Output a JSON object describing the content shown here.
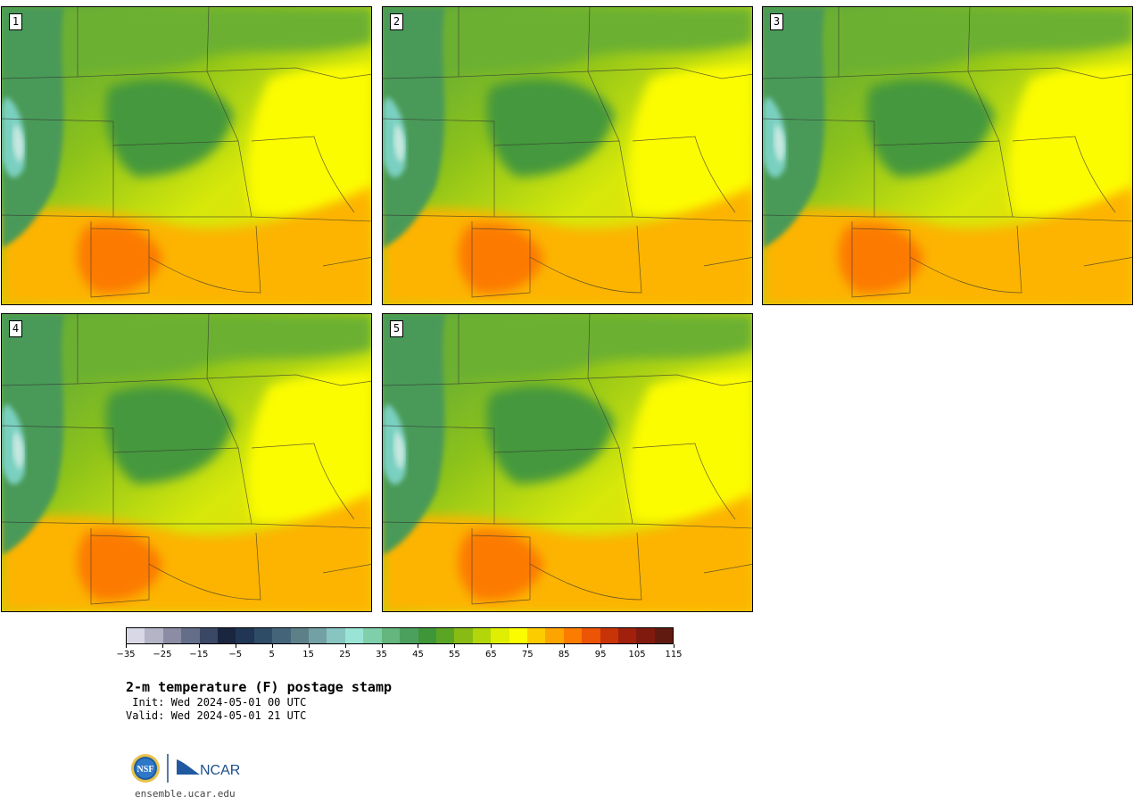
{
  "panels": [
    {
      "label": "1"
    },
    {
      "label": "2"
    },
    {
      "label": "3"
    },
    {
      "label": "4"
    },
    {
      "label": "5"
    }
  ],
  "colorbar": {
    "colors": [
      "#d8d8e6",
      "#b4b4c6",
      "#8c8ca4",
      "#646e88",
      "#3a4866",
      "#1a2540",
      "#203654",
      "#2e4c66",
      "#44647a",
      "#5c8088",
      "#72a0a4",
      "#88c4c0",
      "#9ae4d6",
      "#7fd0aa",
      "#64b67e",
      "#4ca05e",
      "#3e9638",
      "#5aa624",
      "#88bc14",
      "#b2d60a",
      "#e0ee04",
      "#fcfc00",
      "#fccc00",
      "#fca400",
      "#fc7c00",
      "#ec5406",
      "#c83408",
      "#a0200c",
      "#801a0e",
      "#601a10"
    ],
    "ticks": [
      "−35",
      "−25",
      "−15",
      "−5",
      "5",
      "15",
      "25",
      "35",
      "45",
      "55",
      "65",
      "75",
      "85",
      "95",
      "105",
      "115"
    ]
  },
  "title": "2-m temperature (F) postage stamp",
  "init": " Init: Wed 2024-05-01 00 UTC",
  "valid": "Valid: Wed 2024-05-01 21 UTC",
  "logos": {
    "nsf": "NSF",
    "ncar": "NCAR"
  },
  "website": "ensemble.ucar.edu"
}
